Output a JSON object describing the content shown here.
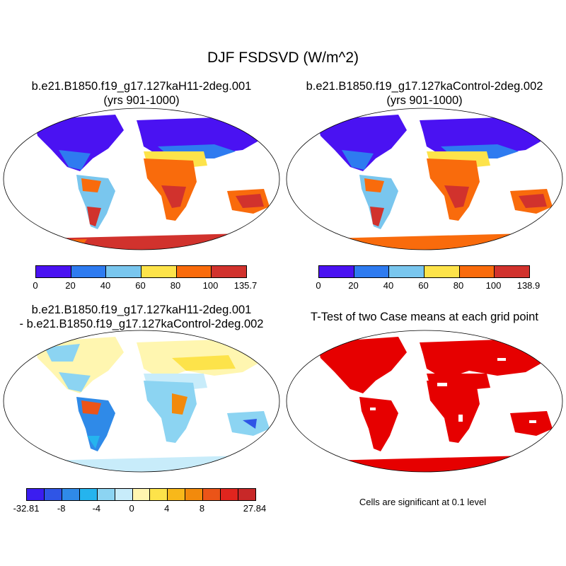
{
  "figure": {
    "title": "DJF FSDSVD (W/m^2)"
  },
  "panels": {
    "case": {
      "title_line1": "b.e21.B1850.f19_g17.127kaH11-2deg.001",
      "title_line2": "(yrs 901-1000)"
    },
    "control": {
      "title_line1": "b.e21.B1850.f19_g17.127kaControl-2deg.002",
      "title_line2": "(yrs 901-1000)"
    },
    "diff": {
      "title_line1": "b.e21.B1850.f19_g17.127kaH11-2deg.001",
      "title_line2": "- b.e21.B1850.f19_g17.127kaControl-2deg.002"
    },
    "ttest": {
      "title_line1": "T-Test of two Case means at each grid point",
      "note": "Cells are significant at 0.1 level",
      "sig_color": "#e60000"
    }
  },
  "colorbars": {
    "case": {
      "colors": [
        "#4a12f2",
        "#2e7bf0",
        "#79c6ee",
        "#fde34a",
        "#f96b0c",
        "#d1322d"
      ],
      "labels": [
        "0",
        "20",
        "40",
        "60",
        "80",
        "100",
        "135.7"
      ]
    },
    "control": {
      "colors": [
        "#4a12f2",
        "#2e7bf0",
        "#79c6ee",
        "#fde34a",
        "#f96b0c",
        "#d1322d"
      ],
      "labels": [
        "0",
        "20",
        "40",
        "60",
        "80",
        "100",
        "138.9"
      ]
    },
    "diff": {
      "colors": [
        "#3b1df0",
        "#2f55e6",
        "#2f8ae8",
        "#25b4ee",
        "#8cd4f2",
        "#c8ecfa",
        "#fff6b0",
        "#fde34a",
        "#f8b81a",
        "#f28a0c",
        "#eb5418",
        "#e0251e",
        "#c82828"
      ],
      "labels": [
        "-32.81",
        "-8",
        "-4",
        "0",
        "4",
        "8",
        "27.84"
      ]
    }
  }
}
